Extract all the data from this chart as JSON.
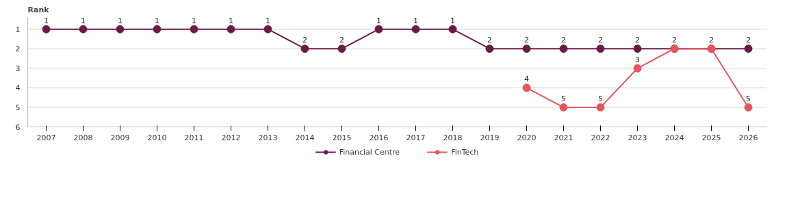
{
  "chart_data": {
    "type": "line",
    "ylabel": "Rank",
    "categories": [
      "2007",
      "2008",
      "2009",
      "2010",
      "2011",
      "2012",
      "2013",
      "2014",
      "2015",
      "2016",
      "2017",
      "2018",
      "2019",
      "2020",
      "2021",
      "2022",
      "2023",
      "2024",
      "2025",
      "2026"
    ],
    "series": [
      {
        "name": "Financial Centre",
        "color": "#6b1a48",
        "values": [
          1,
          1,
          1,
          1,
          1,
          1,
          1,
          2,
          2,
          1,
          1,
          1,
          2,
          2,
          2,
          2,
          2,
          2,
          2,
          2
        ],
        "value_labels": [
          "1",
          "1",
          "1",
          "1",
          "1",
          "1",
          "1",
          "2",
          "2",
          "1",
          "1",
          "1",
          "2",
          "2",
          "2",
          "2",
          "2",
          "2",
          "2",
          "2"
        ]
      },
      {
        "name": "FinTech",
        "color": "#e8545c",
        "values": [
          null,
          null,
          null,
          null,
          null,
          null,
          null,
          null,
          null,
          null,
          null,
          null,
          null,
          4,
          5,
          5,
          3,
          2,
          2,
          5
        ],
        "value_labels": [
          null,
          null,
          null,
          null,
          null,
          null,
          null,
          null,
          null,
          null,
          null,
          null,
          null,
          "4",
          "5",
          "5",
          "3",
          null,
          null,
          "5"
        ]
      }
    ],
    "ylim": [
      6,
      0.4
    ],
    "yticks": [
      1,
      2,
      3,
      4,
      5,
      6
    ],
    "grid": "y",
    "legend": "bottom",
    "marker": "circle",
    "line_style": "solid"
  }
}
